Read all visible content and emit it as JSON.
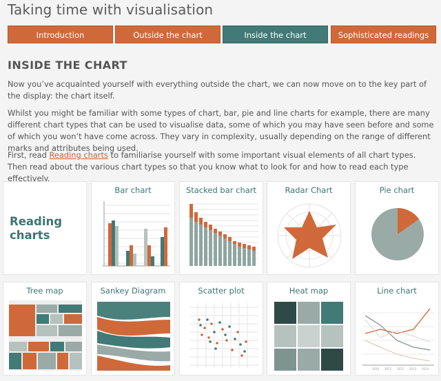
{
  "site": {
    "title": "Taking time with visualisation"
  },
  "tabs": [
    {
      "label": "Introduction"
    },
    {
      "label": "Outside the chart"
    },
    {
      "label": "Inside the chart"
    },
    {
      "label": "Sophisticated readings"
    }
  ],
  "section": {
    "title": "INSIDE THE CHART"
  },
  "paragraphs": {
    "p1": "Now you’ve acquainted yourself with everything outside the chart, we can now move on to the key part of the display: the chart itself.",
    "p2": "Whilst you might be familiar with some types of chart, bar, pie and line charts for example, there are many different chart types that can be used to visualise data, some of which you may have seen before and some of which you won’t have come across. They vary in complexity, usually depending on the range of different marks and attributes being used.",
    "p3_before": "First, read ",
    "p3_link": "Reading charts",
    "p3_after": " to familiarise yourself with some important visual elements of all chart types. Then read about the various chart types so that you know what to look for and how to read each type effectively."
  },
  "cards": {
    "reading_charts": "Reading charts",
    "bar_chart": "Bar chart",
    "stacked_bar_chart": "Stacked bar chart",
    "radar_chart": "Radar Chart",
    "pie_chart": "Pie chart",
    "tree_map": "Tree map",
    "sankey_diagram": "Sankey Diagram",
    "scatter_plot": "Scatter plot",
    "heat_map": "Heat map",
    "line_chart": "Line chart"
  },
  "line_chart_ticks": [
    "2010",
    "2011",
    "2012",
    "2013",
    "2014"
  ],
  "colors": {
    "accent": "#d0693a",
    "teal": "#417a76",
    "grey": "#9aaba7",
    "dark_teal": "#2e4a47"
  }
}
